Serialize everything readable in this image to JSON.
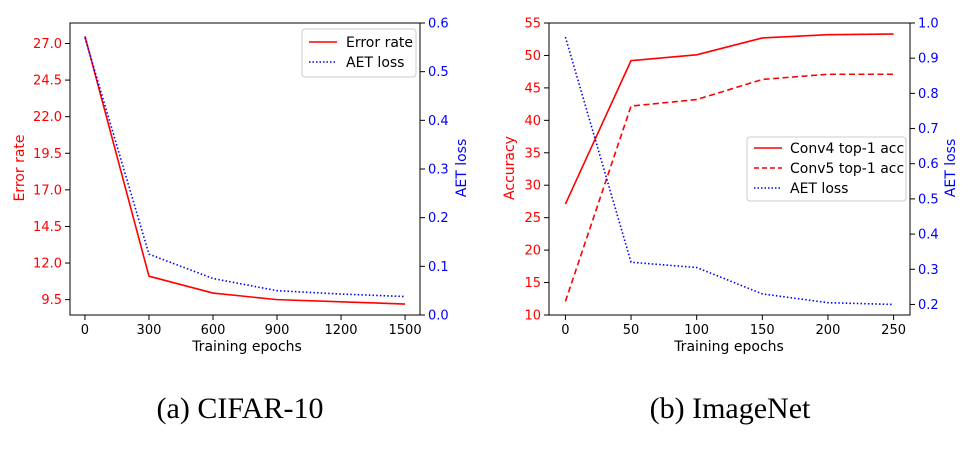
{
  "colors": {
    "error": "#ff0000",
    "aet": "#0000ff",
    "axis": "#000000"
  },
  "chart_data": [
    {
      "type": "line",
      "caption": "(a) CIFAR-10",
      "xlabel": "Training epochs",
      "ylabel_left": "Error rate",
      "ylabel_right": "AET loss",
      "x": [
        0,
        300,
        600,
        900,
        1200,
        1500
      ],
      "xticks": [
        "0",
        "300",
        "600",
        "900",
        "1200",
        "1500"
      ],
      "xlim": [
        -70,
        1570
      ],
      "ylim_left": [
        8.45,
        28.4
      ],
      "ylim_right": [
        0,
        0.6
      ],
      "yticks_left": [
        "9.5",
        "12.0",
        "14.5",
        "17.0",
        "19.5",
        "22.0",
        "24.5",
        "27.0"
      ],
      "yticks_right": [
        "0.0",
        "0.1",
        "0.2",
        "0.3",
        "0.4",
        "0.5",
        "0.6"
      ],
      "legend_position": "upper-right",
      "series": [
        {
          "name": "Error rate",
          "axis": "left",
          "style": "solid",
          "color": "#ff0000",
          "values": [
            27.5,
            11.1,
            9.95,
            9.5,
            9.35,
            9.2
          ]
        },
        {
          "name": "AET loss",
          "axis": "right",
          "style": "dotted",
          "color": "#0000ff",
          "values": [
            0.57,
            0.125,
            0.075,
            0.05,
            0.043,
            0.038
          ]
        }
      ]
    },
    {
      "type": "line",
      "caption": "(b) ImageNet",
      "xlabel": "Training epochs",
      "ylabel_left": "Accuracy",
      "ylabel_right": "AET loss",
      "x": [
        0,
        50,
        100,
        150,
        200,
        250
      ],
      "xticks": [
        "0",
        "50",
        "100",
        "150",
        "200",
        "250"
      ],
      "xlim": [
        -12.5,
        262.5
      ],
      "ylim_left": [
        10,
        55
      ],
      "ylim_right": [
        0.17,
        1.0
      ],
      "yticks_left": [
        "10",
        "15",
        "20",
        "25",
        "30",
        "35",
        "40",
        "45",
        "50",
        "55"
      ],
      "yticks_right": [
        "0.2",
        "0.3",
        "0.4",
        "0.5",
        "0.6",
        "0.7",
        "0.8",
        "0.9",
        "1.0"
      ],
      "legend_position": "center-right",
      "series": [
        {
          "name": "Conv4 top-1 acc",
          "axis": "left",
          "style": "solid",
          "color": "#ff0000",
          "values": [
            27.1,
            49.2,
            50.1,
            52.7,
            53.2,
            53.3
          ]
        },
        {
          "name": "Conv5 top-1 acc",
          "axis": "left",
          "style": "dashed",
          "color": "#ff0000",
          "values": [
            12.1,
            42.2,
            43.2,
            46.3,
            47.1,
            47.1
          ]
        },
        {
          "name": "AET loss",
          "axis": "right",
          "style": "dotted",
          "color": "#0000ff",
          "values": [
            0.96,
            0.32,
            0.305,
            0.23,
            0.205,
            0.2
          ]
        }
      ]
    }
  ]
}
